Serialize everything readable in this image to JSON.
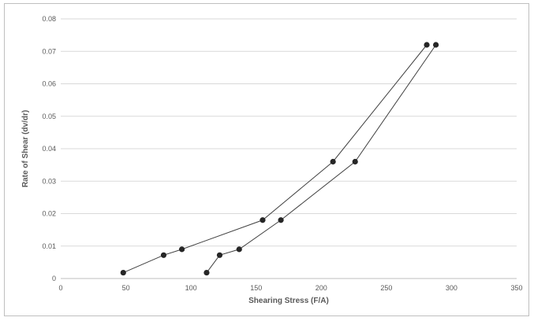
{
  "chart_data": {
    "type": "scatter",
    "title": "",
    "xlabel": "Shearing Stress (F/A)",
    "ylabel": "Rate of Shear (dv/dr)",
    "xlim": [
      0,
      350
    ],
    "ylim": [
      0,
      0.08
    ],
    "x_ticks": [
      "0",
      "50",
      "100",
      "150",
      "200",
      "250",
      "300",
      "350"
    ],
    "y_ticks": [
      "0",
      "0.01",
      "0.02",
      "0.03",
      "0.04",
      "0.05",
      "0.06",
      "0.07",
      "0.08"
    ],
    "grid": "horizontal",
    "legend": "none",
    "series": [
      {
        "x": [
          48,
          79,
          93,
          155,
          209,
          281
        ],
        "y": [
          0.0018,
          0.0072,
          0.009,
          0.018,
          0.036,
          0.072
        ],
        "color": "#262626"
      },
      {
        "x": [
          112,
          122,
          137,
          169,
          226,
          288
        ],
        "y": [
          0.0018,
          0.0072,
          0.009,
          0.018,
          0.036,
          0.072
        ],
        "color": "#262626"
      }
    ]
  }
}
